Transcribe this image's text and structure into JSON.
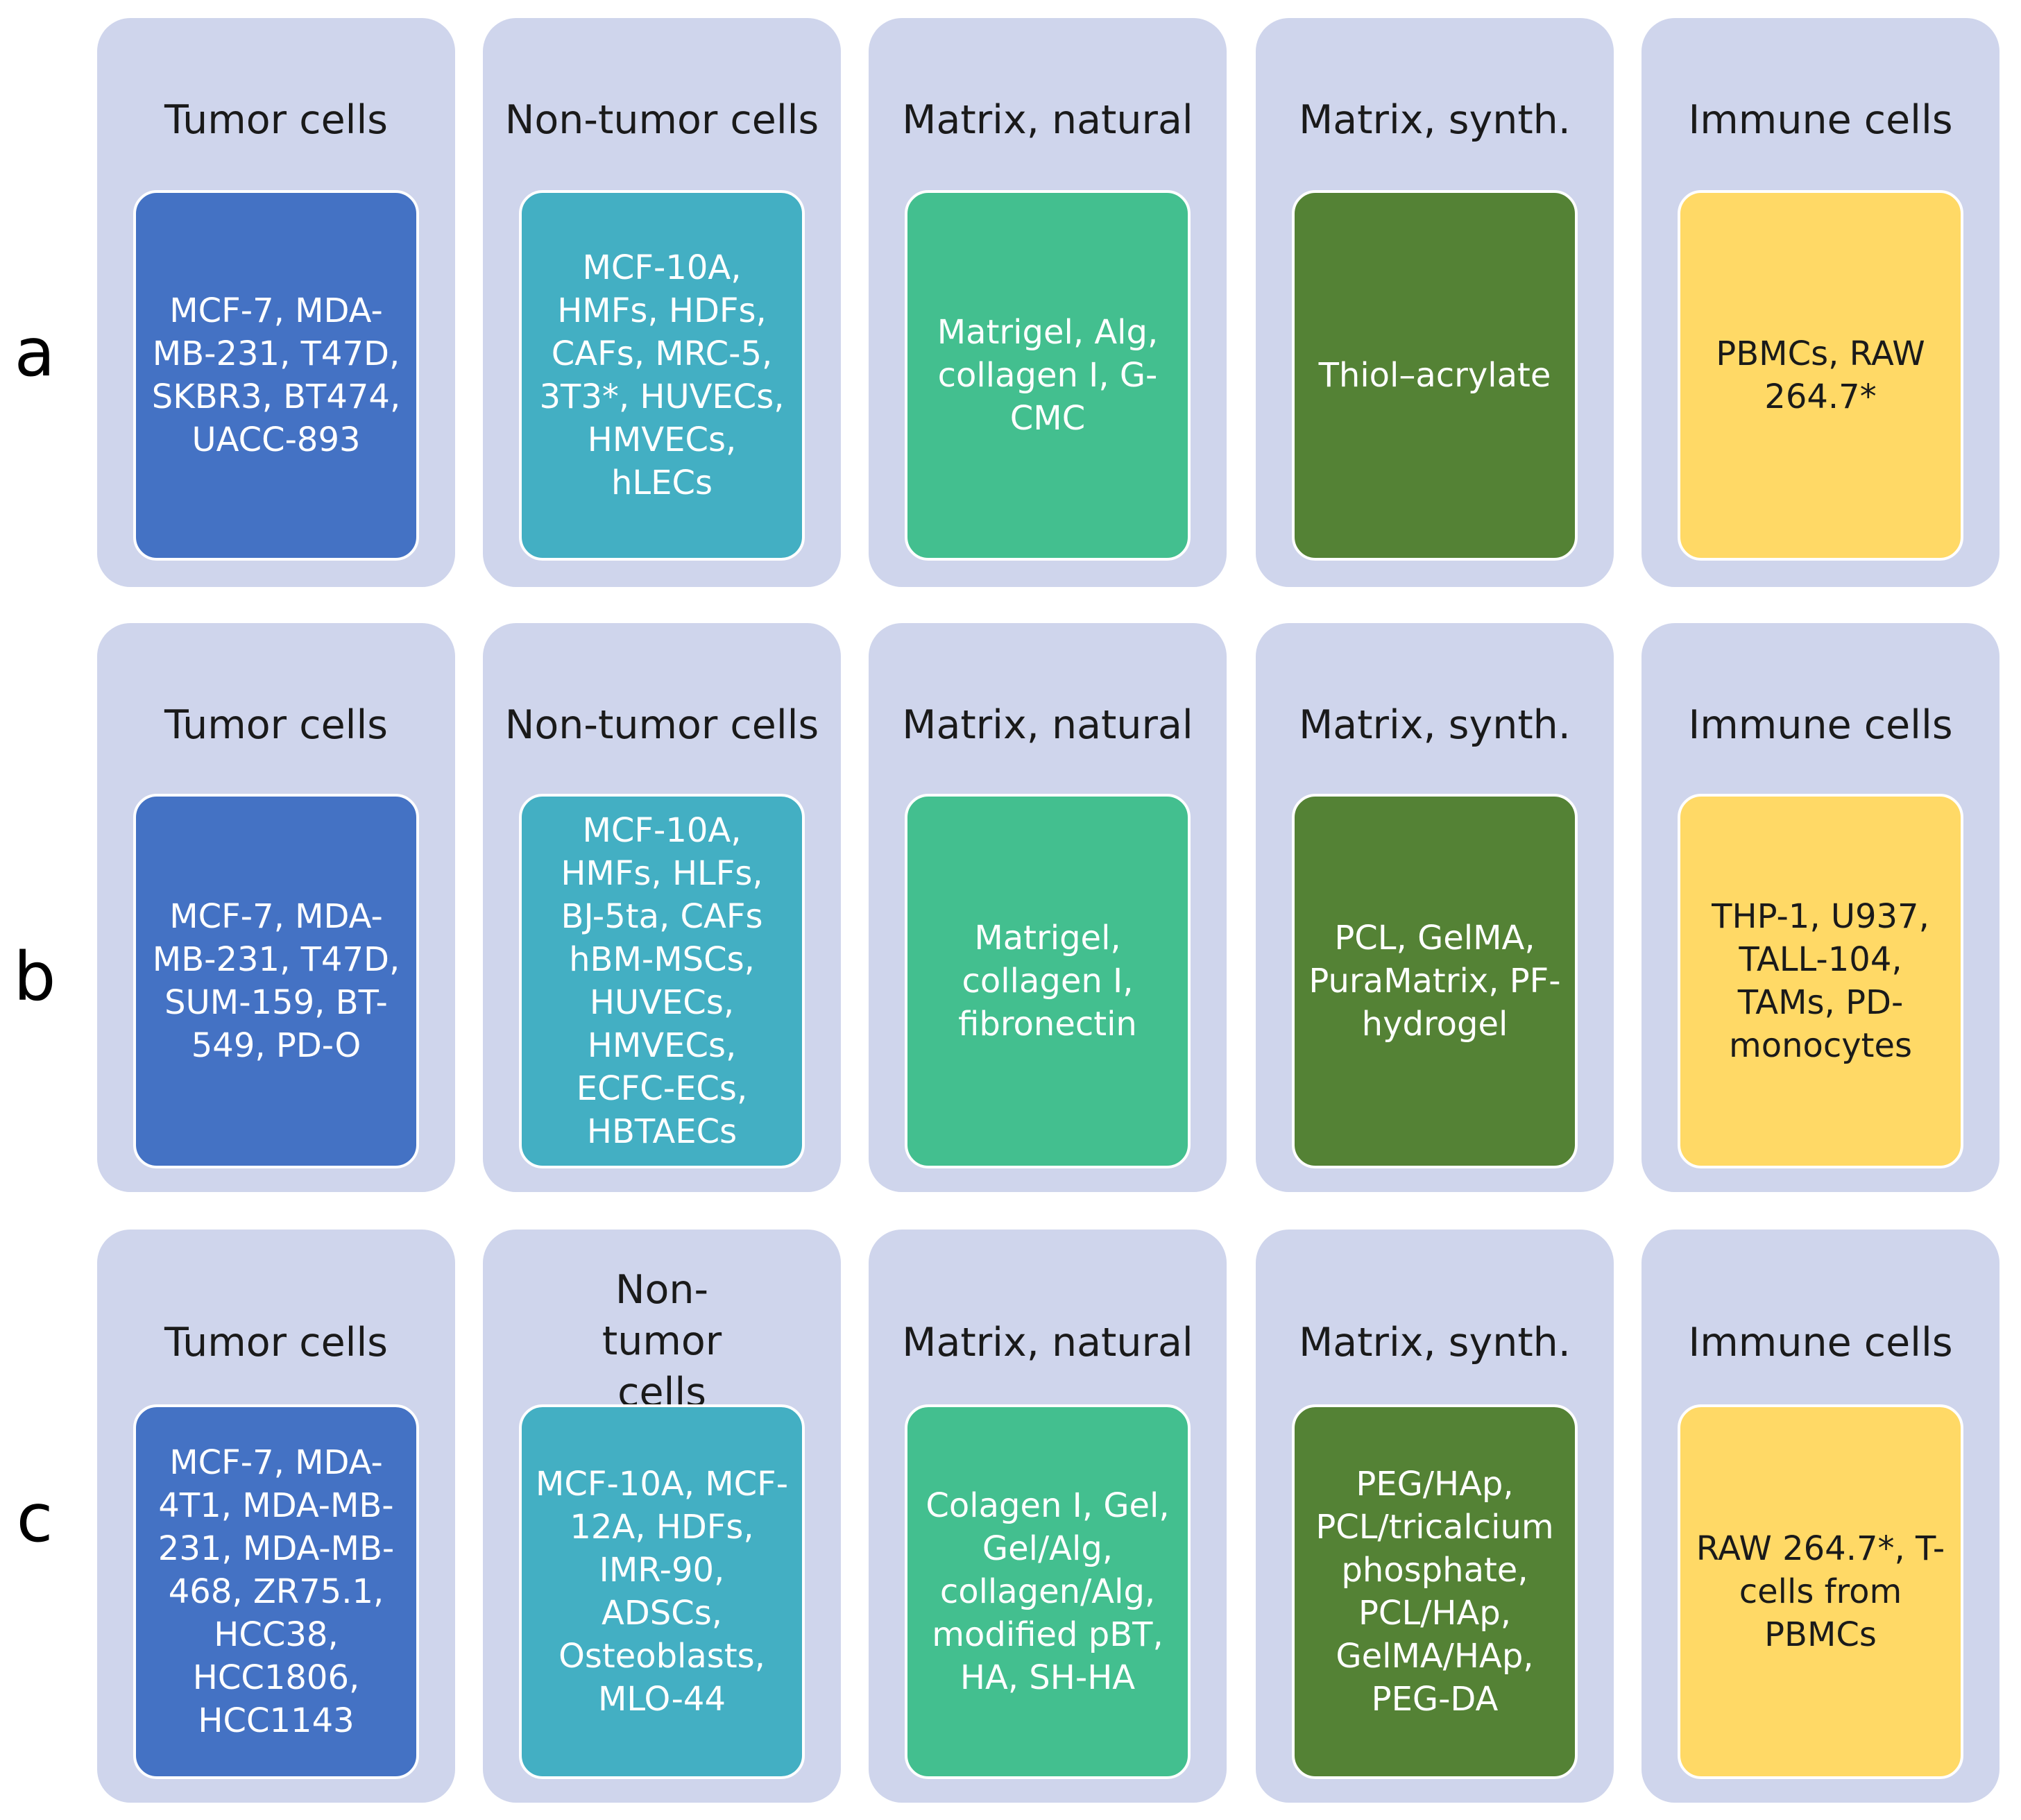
{
  "colors": {
    "panel_bg": "#cfd5ec",
    "tumor": "#4472c4",
    "non_tumor": "#43afc3",
    "matrix_natural": "#43bf8f",
    "matrix_synth": "#548235",
    "immune": "#ffd966"
  },
  "rows": [
    {
      "label": "a",
      "columns": [
        {
          "title": "Tumor cells",
          "content": "MCF-7, MDA-MB-231, T47D, SKBR3, BT474, UACC-893"
        },
        {
          "title": "Non-tumor cells",
          "content": "MCF-10A, HMFs, HDFs, CAFs, MRC-5, 3T3*, HUVECs, HMVECs, hLECs"
        },
        {
          "title": "Matrix, natural",
          "content": "Matrigel, Alg, collagen I, G-CMC"
        },
        {
          "title": "Matrix, synth.",
          "content": "Thiol–acrylate"
        },
        {
          "title": "Immune cells",
          "content": "PBMCs, RAW 264.7*"
        }
      ]
    },
    {
      "label": "b",
      "columns": [
        {
          "title": "Tumor cells",
          "content": "MCF-7, MDA-MB-231, T47D, SUM-159, BT-549, PD-O"
        },
        {
          "title": "Non-tumor cells",
          "content": "MCF-10A, HMFs, HLFs, BJ-5ta, CAFs hBM-MSCs, HUVECs, HMVECs, ECFC-ECs, HBTAECs"
        },
        {
          "title": "Matrix, natural",
          "content": "Matrigel, collagen I, fibronectin"
        },
        {
          "title": "Matrix, synth.",
          "content": "PCL, GelMA, PuraMatrix, PF-hydrogel"
        },
        {
          "title": "Immune cells",
          "content": "THP-1, U937, TALL-104, TAMs, PD-monocytes"
        }
      ]
    },
    {
      "label": "c",
      "columns": [
        {
          "title": "Tumor cells",
          "content": "MCF-7, MDA-4T1, MDA-MB-231, MDA-MB-468, ZR75.1, HCC38, HCC1806, HCC1143"
        },
        {
          "title": "Non-tumor cells",
          "content": "MCF-10A, MCF-12A, HDFs, IMR-90, ADSCs, Osteoblasts, MLO-44"
        },
        {
          "title": "Matrix, natural",
          "content": "Colagen I, Gel, Gel/Alg, collagen/Alg, modified pBT, HA, SH-HA"
        },
        {
          "title": "Matrix, synth.",
          "content": "PEG/HAp, PCL/tricalcium phosphate, PCL/HAp, GelMA/HAp, PEG-DA"
        },
        {
          "title": "Immune cells",
          "content": "RAW 264.7*, T-cells from PBMCs"
        }
      ]
    }
  ]
}
